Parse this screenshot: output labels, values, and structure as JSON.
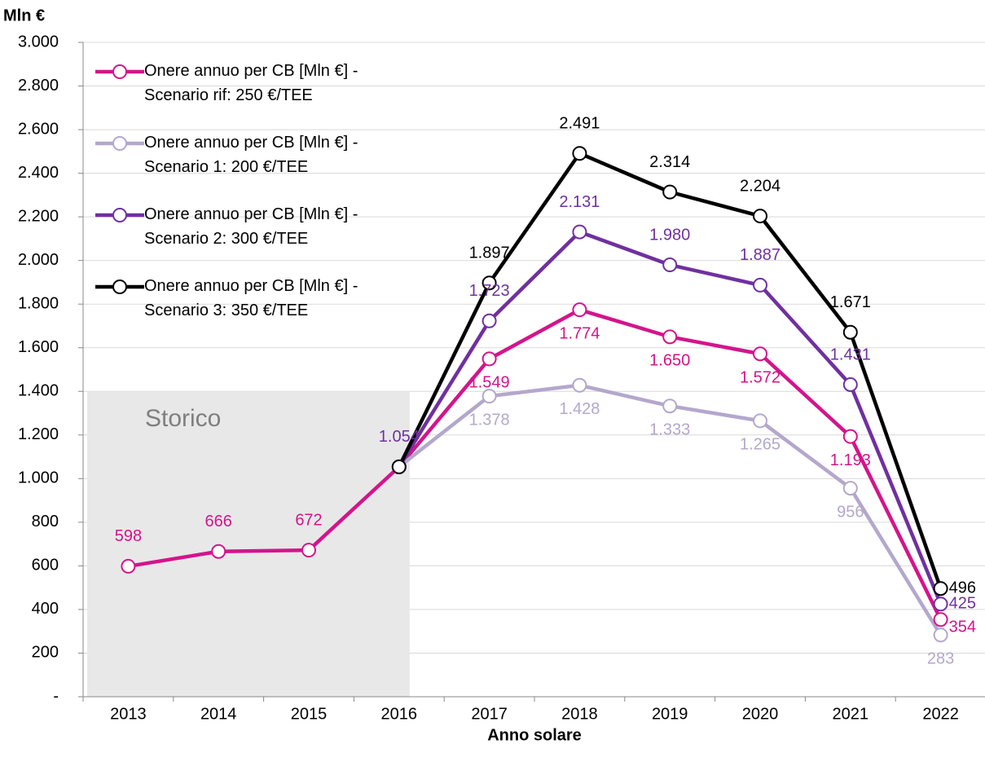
{
  "chart_data": {
    "type": "line",
    "y_axis_title": "Mln €",
    "x_axis_title": "Anno solare",
    "categories": [
      "2013",
      "2014",
      "2015",
      "2016",
      "2017",
      "2018",
      "2019",
      "2020",
      "2021",
      "2022"
    ],
    "series": [
      {
        "name": "Onere annuo per CB [Mln €] - Scenario rif: 250 €/TEE",
        "color": "#d4148c",
        "label_position": "below",
        "values": [
          598,
          666,
          672,
          1054,
          1549,
          1774,
          1650,
          1572,
          1193,
          354
        ],
        "value_labels": [
          "598",
          "666",
          "672",
          null,
          "1.549",
          "1.774",
          "1.650",
          "1.572",
          "1.193",
          "354"
        ]
      },
      {
        "name": "Onere annuo per CB [Mln €] - Scenario 1: 200 €/TEE",
        "color": "#b4a7cc",
        "label_position": "below",
        "values": [
          null,
          null,
          null,
          1054,
          1378,
          1428,
          1333,
          1265,
          956,
          283
        ],
        "value_labels": [
          null,
          null,
          null,
          null,
          "1.378",
          "1.428",
          "1.333",
          "1.265",
          "956",
          "283"
        ]
      },
      {
        "name": "Onere annuo per CB [Mln €] - Scenario 2: 300 €/TEE",
        "color": "#7030a0",
        "label_position": "above",
        "values": [
          null,
          null,
          null,
          1054,
          1723,
          2131,
          1980,
          1887,
          1431,
          425
        ],
        "value_labels": [
          null,
          null,
          null,
          "1.054",
          "1.723",
          "2.131",
          "1.980",
          "1.887",
          "1.431",
          "425"
        ]
      },
      {
        "name": "Onere annuo per CB [Mln €] - Scenario 3: 350 €/TEE",
        "color": "#000000",
        "label_position": "above",
        "values": [
          null,
          null,
          null,
          1054,
          1897,
          2491,
          2314,
          2204,
          1671,
          496
        ],
        "value_labels": [
          null,
          null,
          null,
          null,
          "1.897",
          "2.491",
          "2.314",
          "2.204",
          "1.671",
          "496"
        ]
      }
    ],
    "shaded_region": {
      "label": "Storico",
      "from": "2013",
      "to": "2016",
      "top": 1400
    },
    "ylim": [
      0,
      3000
    ],
    "yticks": [
      {
        "value": 0,
        "label": "-"
      },
      200,
      400,
      600,
      800,
      {
        "value": 1000,
        "label": "1.000"
      },
      {
        "value": 1200,
        "label": "1.200"
      },
      {
        "value": 1400,
        "label": "1.400"
      },
      {
        "value": 1600,
        "label": "1.600"
      },
      {
        "value": 1800,
        "label": "1.800"
      },
      {
        "value": 2000,
        "label": "2.000"
      },
      {
        "value": 2200,
        "label": "2.200"
      },
      {
        "value": 2400,
        "label": "2.400"
      },
      {
        "value": 2600,
        "label": "2.600"
      },
      {
        "value": 2800,
        "label": "2.800"
      },
      {
        "value": 3000,
        "label": "3.000"
      }
    ],
    "grid": true,
    "legend": "top-left"
  }
}
